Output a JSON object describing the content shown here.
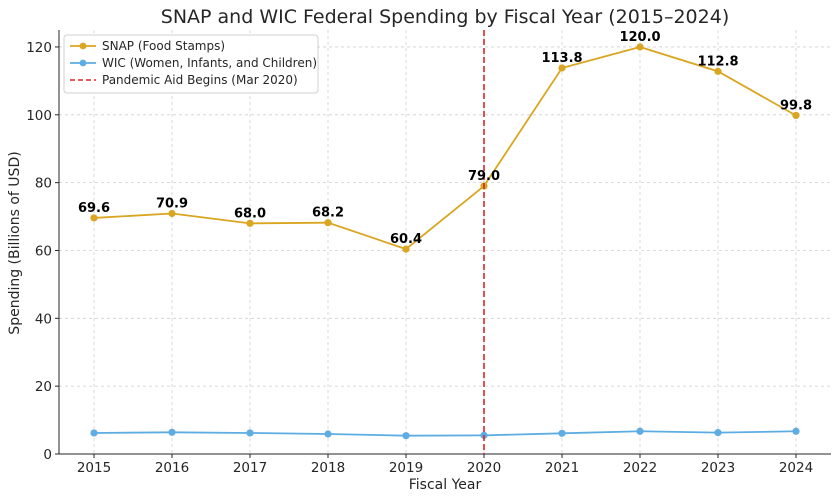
{
  "chart_data": {
    "type": "line",
    "title": "SNAP and WIC Federal Spending by Fiscal Year (2015–2024)",
    "xlabel": "Fiscal Year",
    "ylabel": "Spending (Billions of USD)",
    "categories": [
      "2015",
      "2016",
      "2017",
      "2018",
      "2019",
      "2020",
      "2021",
      "2022",
      "2023",
      "2024"
    ],
    "ylim": [
      0,
      125
    ],
    "yticks": [
      0,
      20,
      40,
      60,
      80,
      100,
      120
    ],
    "grid": true,
    "legend_position": "top-left",
    "series": [
      {
        "name": "SNAP (Food Stamps)",
        "color": "#daa520",
        "values": [
          69.6,
          70.9,
          68.0,
          68.2,
          60.4,
          79.0,
          113.8,
          120.0,
          112.8,
          99.8
        ],
        "labels": [
          "69.6",
          "70.9",
          "68.0",
          "68.2",
          "60.4",
          "79.0",
          "113.8",
          "120.0",
          "112.8",
          "99.8"
        ]
      },
      {
        "name": "WIC (Women, Infants, and Children)",
        "color": "#5dade2",
        "values": [
          6.2,
          6.4,
          6.2,
          5.9,
          5.4,
          5.5,
          6.1,
          6.7,
          6.3,
          6.7
        ]
      }
    ],
    "annotation": {
      "label": "Pandemic Aid Begins (Mar 2020)",
      "x": "2020",
      "color": "#d62728",
      "style": "dashed"
    }
  }
}
